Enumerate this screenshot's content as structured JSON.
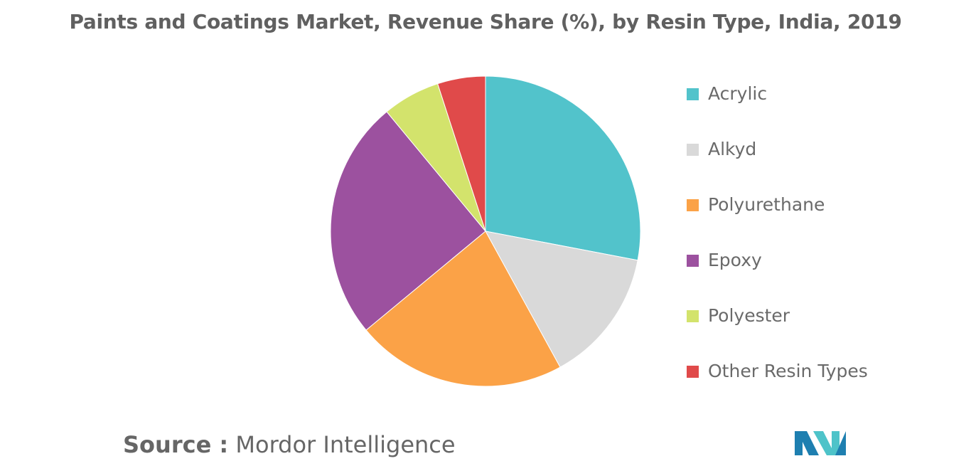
{
  "chart_data": {
    "type": "pie",
    "title": "Paints and Coatings Market, Revenue Share (%), by Resin Type, India, 2019",
    "legend_position": "right",
    "slices": [
      {
        "label": "Acrylic",
        "value": 28,
        "color": "#52c3cb"
      },
      {
        "label": "Alkyd",
        "value": 14,
        "color": "#d9d9d9"
      },
      {
        "label": "Polyurethane",
        "value": 22,
        "color": "#fba247"
      },
      {
        "label": "Epoxy",
        "value": 25,
        "color": "#9c519f"
      },
      {
        "label": "Polyester",
        "value": 6,
        "color": "#d3e36c"
      },
      {
        "label": "Other Resin Types",
        "value": 5,
        "color": "#e04a4a"
      }
    ]
  },
  "source": {
    "label": "Source :",
    "value": "Mordor Intelligence"
  },
  "logo": {
    "icon": "mordor-intelligence-logo",
    "colors": [
      "#1e7fb0",
      "#4ec3c9"
    ]
  }
}
